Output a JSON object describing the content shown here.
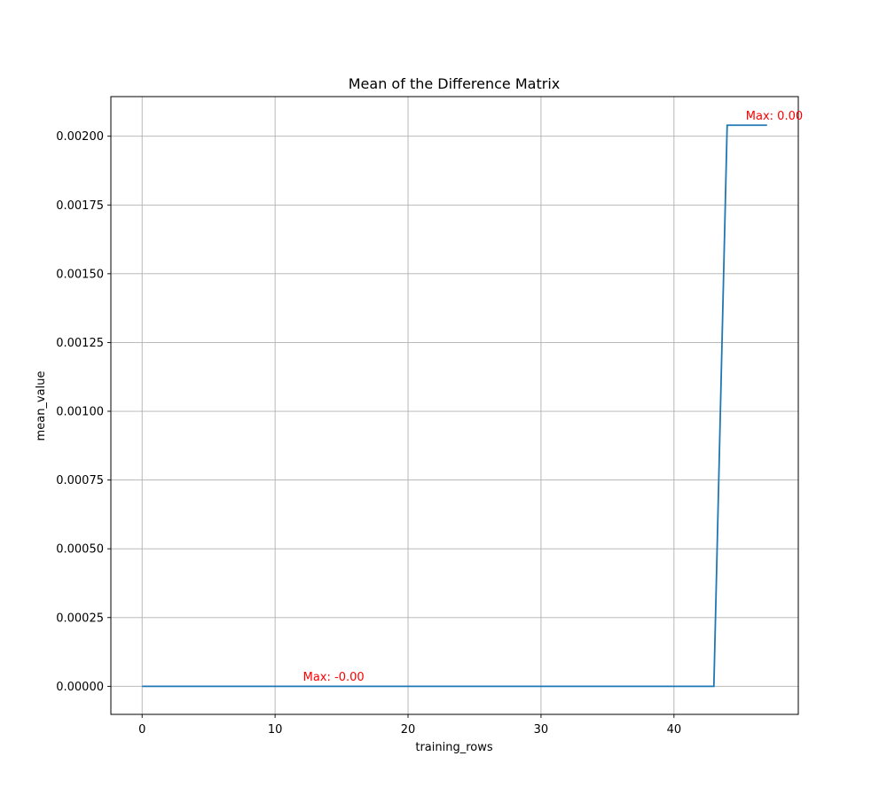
{
  "chart_data": {
    "type": "line",
    "title": "Mean of the Difference Matrix",
    "xlabel": "training_rows",
    "ylabel": "mean_value",
    "xlim": [
      -2.35,
      49.35
    ],
    "ylim": [
      -0.000102,
      0.002144
    ],
    "x_ticks": [
      0,
      10,
      20,
      30,
      40
    ],
    "x_tick_labels": [
      "0",
      "10",
      "20",
      "30",
      "40"
    ],
    "y_ticks": [
      0,
      0.00025,
      0.0005,
      0.00075,
      0.001,
      0.00125,
      0.0015,
      0.00175,
      0.002
    ],
    "y_tick_labels": [
      "0.00000",
      "0.00025",
      "0.00050",
      "0.00075",
      "0.00100",
      "0.00125",
      "0.00150",
      "0.00175",
      "0.00200"
    ],
    "grid": true,
    "series": [
      {
        "color": "#1f77b4",
        "x": [
          0,
          1,
          2,
          3,
          4,
          5,
          6,
          7,
          8,
          9,
          10,
          11,
          12,
          13,
          14,
          15,
          16,
          17,
          18,
          19,
          20,
          21,
          22,
          23,
          24,
          25,
          26,
          27,
          28,
          29,
          30,
          31,
          32,
          33,
          34,
          35,
          36,
          37,
          38,
          39,
          40,
          41,
          42,
          43,
          44,
          45,
          46,
          47
        ],
        "y": [
          0,
          0,
          0,
          0,
          0,
          0,
          0,
          0,
          0,
          0,
          0,
          0,
          0,
          0,
          0,
          0,
          0,
          0,
          0,
          0,
          0,
          0,
          0,
          0,
          0,
          0,
          0,
          0,
          0,
          0,
          0,
          0,
          0,
          0,
          0,
          0,
          0,
          0,
          0,
          0,
          0,
          0,
          0,
          0,
          0.00204,
          0.00204,
          0.00204,
          0.00204
        ]
      }
    ],
    "annotations": [
      {
        "text": "Max: -0.00",
        "x": 12.1,
        "y": 2e-05,
        "color": "#ff0000"
      },
      {
        "text": "Max: 0.00",
        "x": 45.4,
        "y": 0.00206,
        "color": "#ff0000"
      }
    ]
  }
}
